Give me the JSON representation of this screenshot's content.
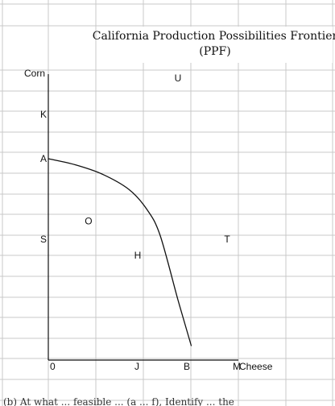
{
  "chart_data": {
    "type": "line",
    "title_lines": [
      "California Production Possibilities Frontier",
      "(PPF)"
    ],
    "xlabel": "Cheese",
    "ylabel": "Corn",
    "x_tick_labels": [
      "0",
      "J",
      "B",
      "M"
    ],
    "y_tick_labels": [
      "K",
      "A",
      "S"
    ],
    "grid": true,
    "series": [
      {
        "points": [
          {
            "x": 0,
            "y": 5.0
          },
          {
            "x": 0.3,
            "y": 4.85
          },
          {
            "x": 0.6,
            "y": 4.62
          },
          {
            "x": 0.9,
            "y": 4.24
          },
          {
            "x": 1.1,
            "y": 3.75
          },
          {
            "x": 1.25,
            "y": 3.1
          },
          {
            "x": 1.45,
            "y": 1.5
          },
          {
            "x": 1.6,
            "y": 0.35
          }
        ]
      }
    ],
    "points": [
      {
        "label": "U",
        "x": 1.45,
        "y": 7.0
      },
      {
        "label": "O",
        "x": 0.45,
        "y": 3.45
      },
      {
        "label": "T",
        "x": 2.0,
        "y": 3.0
      },
      {
        "label": "H",
        "x": 1.0,
        "y": 2.6
      }
    ]
  },
  "bottom_text": "(b) At what ... feasible ... (a ... f), Identify ... the"
}
